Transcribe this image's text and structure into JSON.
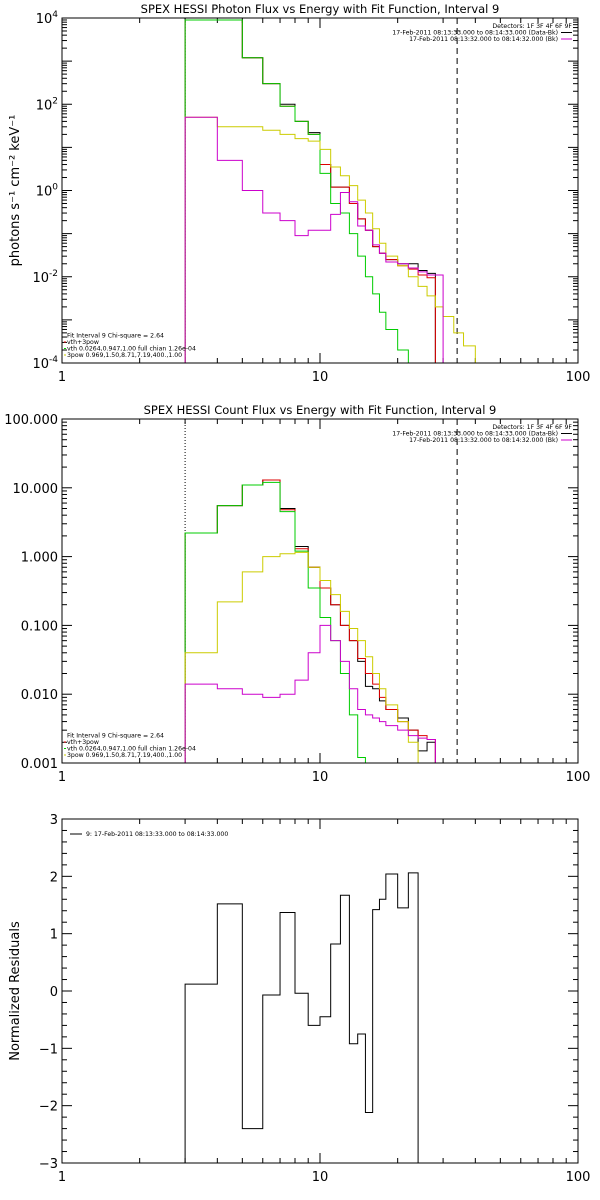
{
  "chart_data": [
    {
      "type": "line",
      "id": "photon",
      "title": "SPEX HESSI Photon Flux vs Energy with Fit Function, Interval 9",
      "xlabel": "",
      "ylabel": "photons s⁻¹ cm⁻² keV⁻¹",
      "xscale": "log",
      "yscale": "log",
      "xlim": [
        1,
        100
      ],
      "ylim": [
        0.0001,
        10000
      ],
      "xticks": [
        {
          "v": 1,
          "label": "1"
        },
        {
          "v": 10,
          "label": "10"
        },
        {
          "v": 100,
          "label": "100"
        }
      ],
      "yticks": [
        {
          "v": 0.0001,
          "base": "10",
          "exp": "-4"
        },
        {
          "v": 0.01,
          "base": "10",
          "exp": "-2"
        },
        {
          "v": 1,
          "base": "10",
          "exp": "0"
        },
        {
          "v": 100,
          "base": "10",
          "exp": "2"
        },
        {
          "v": 10000,
          "base": "10",
          "exp": "4"
        }
      ],
      "vlines": [
        {
          "x": 3.0,
          "style": "dotted"
        },
        {
          "x": 34.0,
          "style": "dashed"
        }
      ],
      "legend_top_right": [
        {
          "text": "Detectors: 1F 3F 4F 6F 9F",
          "color": "#000000"
        },
        {
          "text": "17-Feb-2011 08:13:33.000 to 08:14:33.000 (Data-Bk)",
          "color": "#000000"
        },
        {
          "text": "17-Feb-2011 08:13:32.000 to 08:14:32.000 (Bk)",
          "color": "#cc00cc"
        }
      ],
      "legend_bottom_left": [
        {
          "text": "Fit Interval  9    Chi-square = 2.64",
          "color": "#000000"
        },
        {
          "text": "vth+3pow",
          "color": "#dd0000"
        },
        {
          "text": "vth 0.0264,0.947,1.00  full chian 1.26e-04",
          "color": "#00cc00"
        },
        {
          "text": "3pow 0.969,1.50,8.71,7.19,400.,1.00",
          "color": "#cccc00"
        }
      ],
      "bin_edges": [
        3,
        4,
        5,
        6,
        7,
        8,
        9,
        10,
        11,
        12,
        13,
        14,
        15,
        16,
        17,
        18,
        20,
        22,
        24,
        26,
        28,
        30,
        33,
        36,
        40,
        44
      ],
      "series": [
        {
          "color": "#000000",
          "values": [
            9000,
            9000,
            1200,
            300,
            100,
            40,
            22,
            4,
            1.2,
            1.2,
            0.5,
            0.22,
            0.12,
            0.05,
            0.035,
            0.025,
            0.02,
            0.02,
            0.014,
            0.012
          ]
        },
        {
          "color": "#dd0000",
          "values": [
            9000,
            9000,
            1200,
            300,
            90,
            40,
            20,
            4,
            1.2,
            1.2,
            0.5,
            0.22,
            0.12,
            0.05,
            0.035,
            0.025,
            0.018,
            0.015,
            0.011,
            0.0095
          ]
        },
        {
          "color": "#00cc00",
          "values": [
            9000,
            9000,
            1200,
            300,
            90,
            40,
            20,
            2.5,
            0.5,
            0.3,
            0.1,
            0.03,
            0.01,
            0.004,
            0.0015,
            0.0006,
            0.0002,
            5e-05
          ]
        },
        {
          "color": "#cccc00",
          "values": [
            50,
            30,
            30,
            25,
            20,
            16,
            14,
            9,
            3.5,
            2.2,
            1.3,
            0.6,
            0.3,
            0.13,
            0.06,
            0.03,
            0.018,
            0.01,
            0.006,
            0.0036,
            0.002,
            0.0012,
            0.0005,
            0.00025,
            0.0001
          ]
        },
        {
          "color": "#cc00cc",
          "values": [
            50,
            5,
            1.0,
            0.3,
            0.2,
            0.09,
            0.12,
            0.12,
            0.28,
            0.9,
            0.55,
            0.15,
            0.12,
            0.055,
            0.035,
            0.022,
            0.02,
            0.016,
            0.013,
            0.011,
            0.011
          ]
        }
      ]
    },
    {
      "type": "line",
      "id": "count",
      "title": "SPEX HESSI Count Flux vs Energy with Fit Function, Interval 9",
      "xlabel": "",
      "ylabel": "",
      "xscale": "log",
      "yscale": "log",
      "xlim": [
        1,
        100
      ],
      "ylim": [
        0.001,
        100
      ],
      "xticks": [
        {
          "v": 1,
          "label": "1"
        },
        {
          "v": 10,
          "label": "10"
        },
        {
          "v": 100,
          "label": "100"
        }
      ],
      "yticks": [
        {
          "v": 0.001,
          "label": "0.001"
        },
        {
          "v": 0.01,
          "label": "0.010"
        },
        {
          "v": 0.1,
          "label": "0.100"
        },
        {
          "v": 1,
          "label": "1.000"
        },
        {
          "v": 10,
          "label": "10.000"
        },
        {
          "v": 100,
          "label": "100.000"
        }
      ],
      "vlines": [
        {
          "x": 3.0,
          "style": "dotted"
        },
        {
          "x": 34.0,
          "style": "dashed"
        }
      ],
      "legend_top_right": [
        {
          "text": "Detectors: 1F 3F 4F 6F 9F",
          "color": "#000000"
        },
        {
          "text": "17-Feb-2011 08:13:33.000 to 08:14:33.000 (Data-Bk)",
          "color": "#000000"
        },
        {
          "text": "17-Feb-2011 08:13:32.000 to 08:14:32.000 (Bk)",
          "color": "#cc00cc"
        }
      ],
      "legend_bottom_left": [
        {
          "text": "Fit Interval  9    Chi-square = 2.64",
          "color": "#000000"
        },
        {
          "text": "vth+3pow",
          "color": "#dd0000"
        },
        {
          "text": "vth 0.0264,0.947,1.00  full chian 1.26e-04",
          "color": "#00cc00"
        },
        {
          "text": "3pow 0.969,1.50,8.71,7.19,400.,1.00",
          "color": "#cccc00"
        }
      ],
      "bin_edges": [
        3,
        4,
        5,
        6,
        7,
        8,
        9,
        10,
        11,
        12,
        13,
        14,
        15,
        16,
        17,
        18,
        20,
        22,
        24,
        26,
        28,
        30,
        33,
        36
      ],
      "series": [
        {
          "color": "#000000",
          "values": [
            2.2,
            5.5,
            11,
            13,
            5,
            1.4,
            0.7,
            0.35,
            0.2,
            0.1,
            0.06,
            0.03,
            0.013,
            0.012,
            0.008,
            0.006,
            0.0045,
            0.003,
            0.0015,
            0.002
          ]
        },
        {
          "color": "#dd0000",
          "values": [
            2.2,
            5.5,
            11,
            13,
            4.8,
            1.3,
            0.7,
            0.35,
            0.2,
            0.1,
            0.06,
            0.033,
            0.02,
            0.014,
            0.009,
            0.006,
            0.004,
            0.003,
            0.0025,
            0.0022
          ]
        },
        {
          "color": "#00cc00",
          "values": [
            2.2,
            5.5,
            11,
            12,
            4.5,
            1.2,
            0.35,
            0.13,
            0.06,
            0.02,
            0.005,
            0.0012,
            0.0004
          ]
        },
        {
          "color": "#cccc00",
          "values": [
            0.04,
            0.22,
            0.6,
            1.0,
            1.1,
            1.15,
            0.7,
            0.45,
            0.28,
            0.16,
            0.09,
            0.06,
            0.035,
            0.02,
            0.012,
            0.007,
            0.004,
            0.002,
            0.001,
            0.0006
          ]
        },
        {
          "color": "#cc00cc",
          "values": [
            0.014,
            0.012,
            0.01,
            0.009,
            0.01,
            0.016,
            0.04,
            0.1,
            0.06,
            0.03,
            0.012,
            0.006,
            0.005,
            0.0045,
            0.004,
            0.0035,
            0.003,
            0.0025,
            0.0023,
            0.0022
          ]
        }
      ]
    },
    {
      "type": "line",
      "id": "resid",
      "title": "",
      "xlabel": "",
      "ylabel": "Normalized Residuals",
      "xscale": "log",
      "yscale": "linear",
      "xlim": [
        1,
        100
      ],
      "ylim": [
        -3,
        3
      ],
      "xticks": [
        {
          "v": 1,
          "label": "1"
        },
        {
          "v": 10,
          "label": "10"
        },
        {
          "v": 100,
          "label": "100"
        }
      ],
      "yticks": [
        {
          "v": -3,
          "label": "−3"
        },
        {
          "v": -2,
          "label": "−2"
        },
        {
          "v": -1,
          "label": "−1"
        },
        {
          "v": 0,
          "label": "0"
        },
        {
          "v": 1,
          "label": "1"
        },
        {
          "v": 2,
          "label": "2"
        },
        {
          "v": 3,
          "label": "3"
        }
      ],
      "vlines": [],
      "legend_top_left": [
        {
          "text": "9: 17-Feb-2011 08:13:33.000 to 08:14:33.000",
          "color": "#000000"
        }
      ],
      "bin_edges": [
        3,
        4,
        5,
        6,
        7,
        8,
        9,
        10,
        11,
        12,
        13,
        14,
        15,
        16,
        17,
        18,
        20,
        22,
        24,
        26,
        28,
        30,
        34
      ],
      "series": [
        {
          "color": "#000000",
          "values": [
            0.12,
            1.52,
            -2.4,
            -0.07,
            1.37,
            -0.04,
            -0.6,
            -0.45,
            0.82,
            1.67,
            -0.92,
            -0.75,
            -2.12,
            1.42,
            1.6,
            2.04,
            1.45,
            2.06
          ]
        }
      ]
    }
  ]
}
